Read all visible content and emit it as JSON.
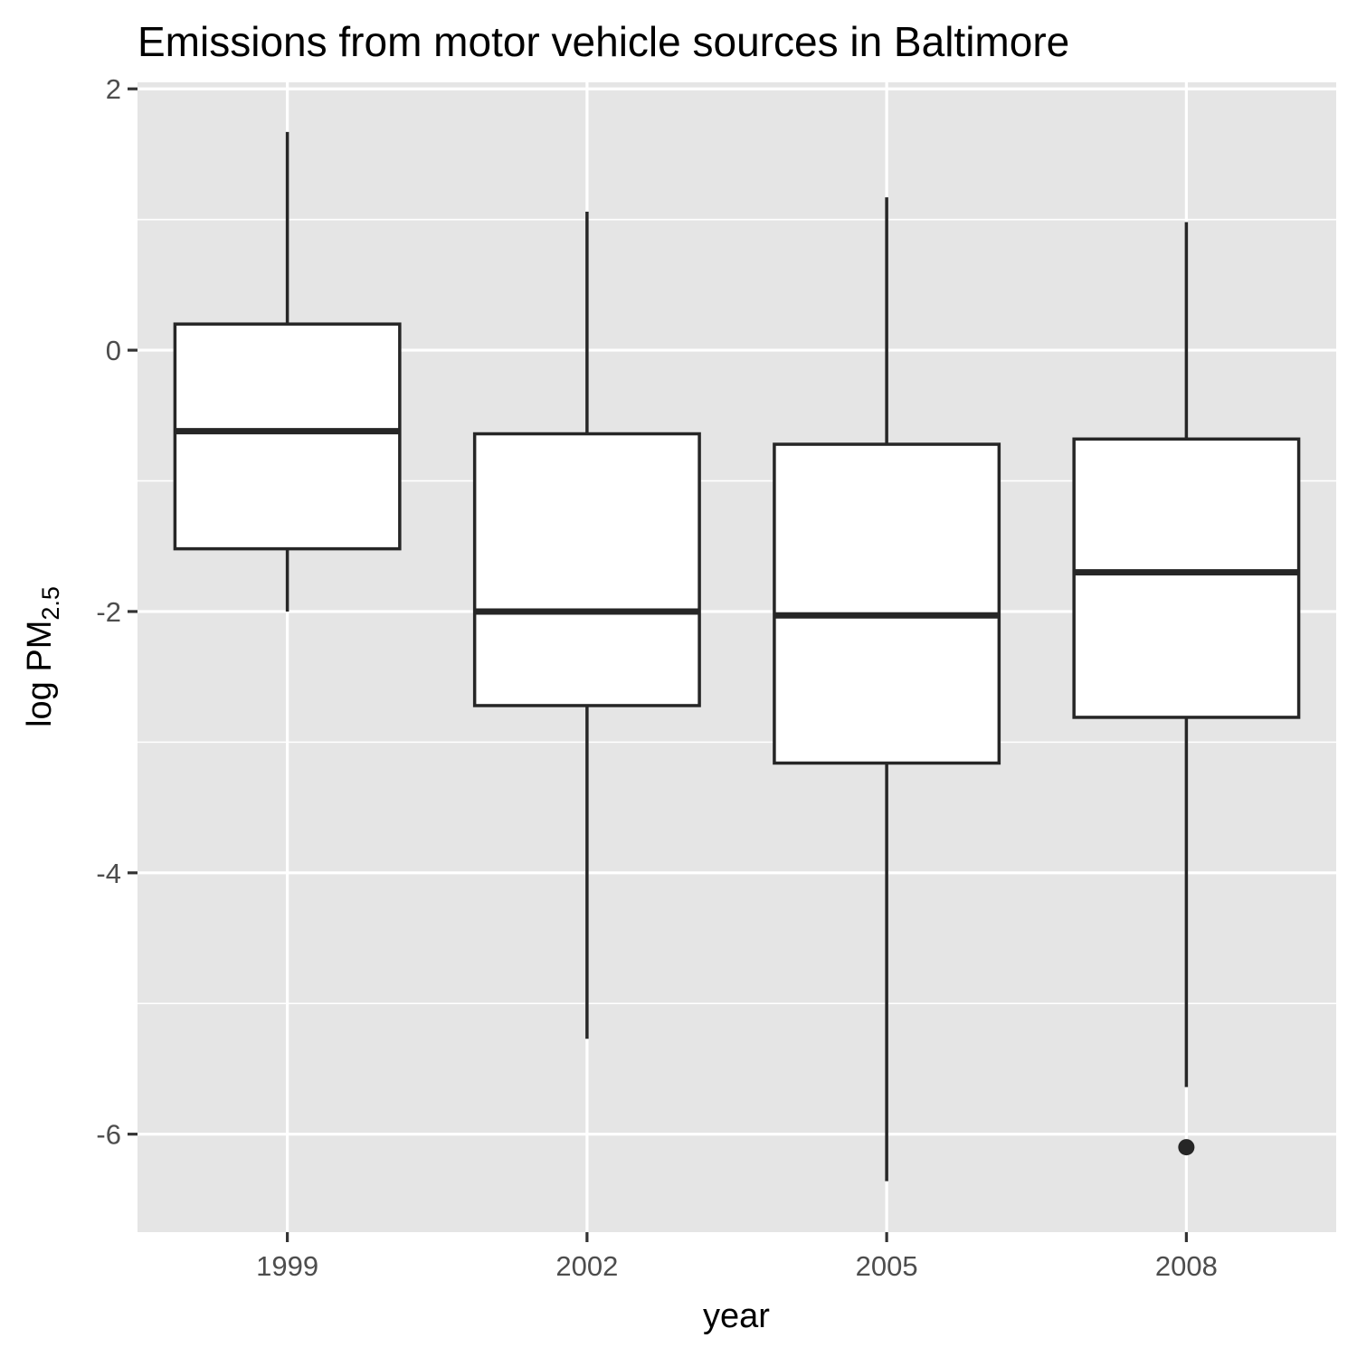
{
  "chart_data": {
    "type": "boxplot",
    "title": "Emissions from motor vehicle sources in Baltimore",
    "xlabel": "year",
    "ylabel": {
      "base": "log PM",
      "subscript": "2.5"
    },
    "categories": [
      "1999",
      "2002",
      "2005",
      "2008"
    ],
    "boxes": [
      {
        "category": "1999",
        "whisker_low": -2.0,
        "q1": -1.52,
        "median": -0.62,
        "q3": 0.2,
        "whisker_high": 1.67,
        "outliers": []
      },
      {
        "category": "2002",
        "whisker_low": -5.27,
        "q1": -2.72,
        "median": -2.0,
        "q3": -0.64,
        "whisker_high": 1.06,
        "outliers": []
      },
      {
        "category": "2005",
        "whisker_low": -6.36,
        "q1": -3.16,
        "median": -2.03,
        "q3": -0.72,
        "whisker_high": 1.17,
        "outliers": []
      },
      {
        "category": "2008",
        "whisker_low": -5.64,
        "q1": -2.81,
        "median": -1.7,
        "q3": -0.68,
        "whisker_high": 0.98,
        "outliers": [
          -6.1
        ]
      }
    ],
    "y_ticks": [
      2,
      0,
      -2,
      -4,
      -6
    ],
    "y_tick_labels": [
      "2",
      "0",
      "-2",
      "-4",
      "-6"
    ],
    "ylim": [
      -6.75,
      2.05
    ],
    "grid": true,
    "legend": "none",
    "colors": {
      "panel_background": "#e5e5e5",
      "grid_line": "#ffffff",
      "box_fill": "#ffffff",
      "box_stroke": "#262626",
      "tick_label": "#4d4d4d",
      "text": "#000000"
    }
  }
}
